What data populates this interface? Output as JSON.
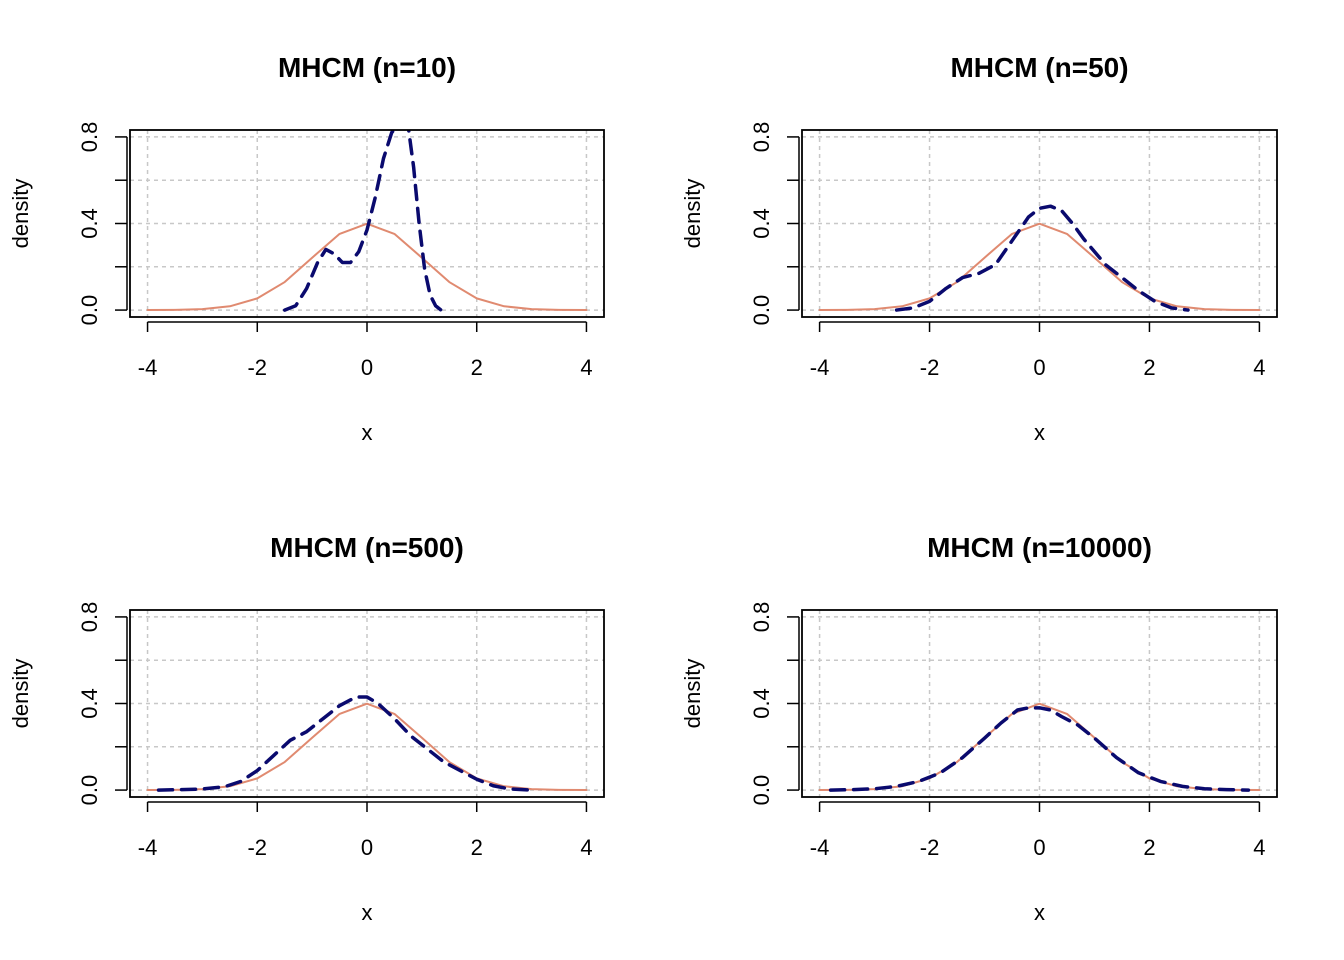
{
  "chart_data": [
    {
      "type": "line",
      "title": "MHCM (n=10)",
      "xlabel": "x",
      "ylabel": "density",
      "xlim": [
        -4,
        4
      ],
      "ylim": [
        0,
        0.8
      ],
      "xticks": [
        "-4",
        "-2",
        "0",
        "2",
        "4"
      ],
      "yticks": [
        "0.0",
        "0.4",
        "0.8"
      ],
      "grid": true,
      "series": [
        {
          "style": "solid",
          "color": "#e08a70",
          "x": [
            -4,
            -3.5,
            -3,
            -2.5,
            -2,
            -1.5,
            -1,
            -0.5,
            0,
            0.5,
            1,
            1.5,
            2,
            2.5,
            3,
            3.5,
            4
          ],
          "y": [
            0.0001,
            0.0009,
            0.0044,
            0.0175,
            0.054,
            0.1295,
            0.242,
            0.352,
            0.399,
            0.352,
            0.242,
            0.1295,
            0.054,
            0.0175,
            0.0044,
            0.0009,
            0.0001
          ]
        },
        {
          "style": "dashed",
          "color": "#0a0a6e",
          "x": [
            -1.5,
            -1.3,
            -1.1,
            -0.9,
            -0.75,
            -0.6,
            -0.45,
            -0.3,
            -0.15,
            0,
            0.15,
            0.3,
            0.45,
            0.55,
            0.65,
            0.75,
            0.85,
            0.95,
            1.05,
            1.15,
            1.25,
            1.35
          ],
          "y": [
            0.0,
            0.02,
            0.1,
            0.22,
            0.28,
            0.26,
            0.22,
            0.22,
            0.27,
            0.37,
            0.52,
            0.7,
            0.82,
            0.85,
            0.85,
            0.85,
            0.66,
            0.4,
            0.19,
            0.07,
            0.02,
            0.0
          ]
        }
      ]
    },
    {
      "type": "line",
      "title": "MHCM (n=50)",
      "xlabel": "x",
      "ylabel": "density",
      "xlim": [
        -4,
        4
      ],
      "ylim": [
        0,
        0.8
      ],
      "xticks": [
        "-4",
        "-2",
        "0",
        "2",
        "4"
      ],
      "yticks": [
        "0.0",
        "0.4",
        "0.8"
      ],
      "grid": true,
      "series": [
        {
          "style": "solid",
          "color": "#e08a70",
          "x": [
            -4,
            -3.5,
            -3,
            -2.5,
            -2,
            -1.5,
            -1,
            -0.5,
            0,
            0.5,
            1,
            1.5,
            2,
            2.5,
            3,
            3.5,
            4
          ],
          "y": [
            0.0001,
            0.0009,
            0.0044,
            0.0175,
            0.054,
            0.1295,
            0.242,
            0.352,
            0.399,
            0.352,
            0.242,
            0.1295,
            0.054,
            0.0175,
            0.0044,
            0.0009,
            0.0001
          ]
        },
        {
          "style": "dashed",
          "color": "#0a0a6e",
          "x": [
            -2.6,
            -2.3,
            -2.0,
            -1.7,
            -1.4,
            -1.1,
            -0.8,
            -0.5,
            -0.2,
            0,
            0.2,
            0.4,
            0.6,
            0.8,
            1.0,
            1.2,
            1.5,
            1.8,
            2.1,
            2.4,
            2.7
          ],
          "y": [
            0.0,
            0.01,
            0.04,
            0.1,
            0.15,
            0.17,
            0.21,
            0.32,
            0.43,
            0.47,
            0.48,
            0.46,
            0.4,
            0.33,
            0.27,
            0.21,
            0.15,
            0.09,
            0.04,
            0.01,
            0.0
          ]
        }
      ]
    },
    {
      "type": "line",
      "title": "MHCM (n=500)",
      "xlabel": "x",
      "ylabel": "density",
      "xlim": [
        -4,
        4
      ],
      "ylim": [
        0,
        0.8
      ],
      "xticks": [
        "-4",
        "-2",
        "0",
        "2",
        "4"
      ],
      "yticks": [
        "0.0",
        "0.4",
        "0.8"
      ],
      "grid": true,
      "series": [
        {
          "style": "solid",
          "color": "#e08a70",
          "x": [
            -4,
            -3.5,
            -3,
            -2.5,
            -2,
            -1.5,
            -1,
            -0.5,
            0,
            0.5,
            1,
            1.5,
            2,
            2.5,
            3,
            3.5,
            4
          ],
          "y": [
            0.0001,
            0.0009,
            0.0044,
            0.0175,
            0.054,
            0.1295,
            0.242,
            0.352,
            0.399,
            0.352,
            0.242,
            0.1295,
            0.054,
            0.0175,
            0.0044,
            0.0009,
            0.0001
          ]
        },
        {
          "style": "dashed",
          "color": "#0a0a6e",
          "x": [
            -3.8,
            -3.4,
            -3.0,
            -2.6,
            -2.3,
            -2.0,
            -1.7,
            -1.4,
            -1.1,
            -0.8,
            -0.5,
            -0.2,
            0,
            0.2,
            0.5,
            0.8,
            1.1,
            1.4,
            1.7,
            2.0,
            2.3,
            2.6,
            3.0
          ],
          "y": [
            0.0,
            0.002,
            0.005,
            0.015,
            0.04,
            0.09,
            0.16,
            0.23,
            0.27,
            0.33,
            0.39,
            0.43,
            0.43,
            0.4,
            0.33,
            0.25,
            0.19,
            0.13,
            0.09,
            0.05,
            0.02,
            0.005,
            0.0
          ]
        }
      ]
    },
    {
      "type": "line",
      "title": "MHCM (n=10000)",
      "xlabel": "x",
      "ylabel": "density",
      "xlim": [
        -4,
        4
      ],
      "ylim": [
        0,
        0.8
      ],
      "xticks": [
        "-4",
        "-2",
        "0",
        "2",
        "4"
      ],
      "yticks": [
        "0.0",
        "0.4",
        "0.8"
      ],
      "grid": true,
      "series": [
        {
          "style": "solid",
          "color": "#e08a70",
          "x": [
            -4,
            -3.5,
            -3,
            -2.5,
            -2,
            -1.5,
            -1,
            -0.5,
            0,
            0.5,
            1,
            1.5,
            2,
            2.5,
            3,
            3.5,
            4
          ],
          "y": [
            0.0001,
            0.0009,
            0.0044,
            0.0175,
            0.054,
            0.1295,
            0.242,
            0.352,
            0.399,
            0.352,
            0.242,
            0.1295,
            0.054,
            0.0175,
            0.0044,
            0.0009,
            0.0001
          ]
        },
        {
          "style": "dashed",
          "color": "#0a0a6e",
          "x": [
            -3.8,
            -3.4,
            -3.0,
            -2.6,
            -2.2,
            -1.8,
            -1.4,
            -1.0,
            -0.7,
            -0.4,
            -0.2,
            0,
            0.2,
            0.4,
            0.7,
            1.0,
            1.4,
            1.8,
            2.2,
            2.6,
            3.0,
            3.4,
            3.8
          ],
          "y": [
            0.0,
            0.002,
            0.006,
            0.017,
            0.04,
            0.08,
            0.15,
            0.24,
            0.31,
            0.37,
            0.38,
            0.38,
            0.37,
            0.34,
            0.3,
            0.24,
            0.15,
            0.08,
            0.04,
            0.017,
            0.006,
            0.002,
            0.0
          ]
        }
      ]
    }
  ]
}
